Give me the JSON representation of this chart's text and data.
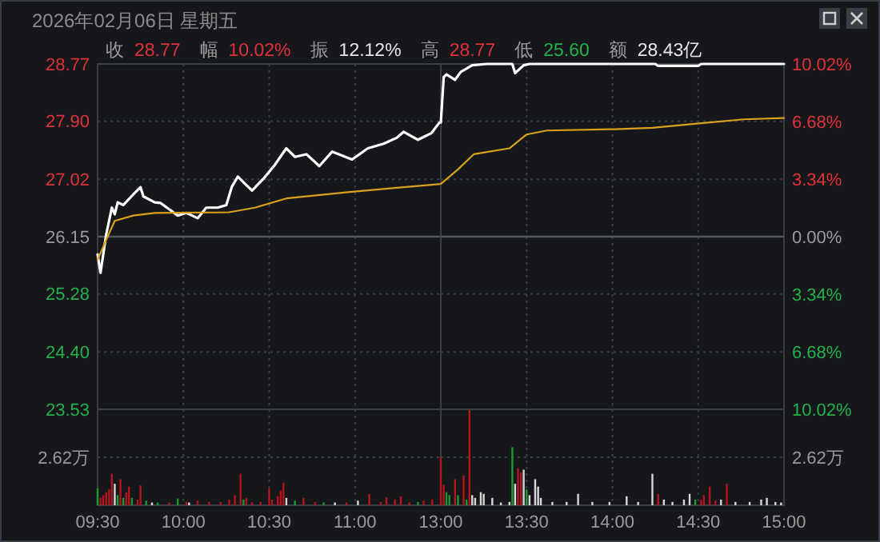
{
  "chart_data": [
    {
      "type": "line",
      "title": "2026年02月06日 星期五",
      "annotations": [
        "收",
        "28.77",
        "幅",
        "10.02%",
        "振",
        "12.12%",
        "高",
        "28.77",
        "低",
        "25.60",
        "额",
        "28.43亿"
      ],
      "tick_labels": "y",
      "grid": true,
      "xlim": [
        9.5,
        11.5
      ],
      "xticks": [
        10,
        10.5,
        11
      ],
      "ylim": [
        23.53,
        28.77
      ],
      "yticks": [
        28.77,
        {
          "value": 27.9,
          "label": "27.90"
        },
        27.02,
        26.15,
        25.28,
        {
          "value": 24.4,
          "label": "24.40"
        },
        23.53
      ],
      "ref_lines": [
        {
          "axis": "y",
          "value": 26.15
        }
      ],
      "series": [
        {
          "color": "#ffffff",
          "x": [
            9.5,
            9.517,
            9.55,
            9.583,
            9.6,
            9.617,
            9.65,
            9.708,
            9.75,
            9.767,
            9.833,
            9.867,
            9.925,
            9.967,
            10.017,
            10.083,
            10.133,
            10.2,
            10.25,
            10.283,
            10.317,
            10.367,
            10.4,
            10.467,
            10.533,
            10.6,
            10.65,
            10.717,
            10.792,
            10.867,
            10.983,
            11.075,
            11.167,
            11.243,
            11.283,
            11.367,
            11.445,
            11.492
          ],
          "values": [
            25.88,
            25.6,
            26.18,
            26.59,
            26.49,
            26.67,
            26.63,
            26.79,
            26.9,
            26.76,
            26.67,
            26.66,
            26.55,
            26.47,
            26.51,
            26.43,
            26.59,
            26.59,
            26.63,
            26.91,
            27.06,
            26.93,
            26.85,
            27.03,
            27.24,
            27.49,
            27.36,
            27.4,
            27.22,
            27.44,
            27.32,
            27.49,
            27.56,
            27.65,
            27.74,
            27.62,
            27.72,
            27.88
          ]
        },
        {
          "color": "#d9a11c",
          "x": [
            9.5,
            9.55,
            9.6,
            9.708,
            9.833,
            10.267,
            10.417,
            10.6,
            10.983,
            11.283,
            11.5
          ],
          "values": [
            25.8,
            26.1,
            26.39,
            26.47,
            26.51,
            26.52,
            26.59,
            26.73,
            26.83,
            26.9,
            26.95
          ]
        }
      ]
    },
    {
      "type": "line",
      "tick_labels": false,
      "grid": true,
      "xlim": [
        13,
        15
      ],
      "xticks": [
        13.5,
        14,
        14.5
      ],
      "ylim": [
        23.53,
        28.77
      ],
      "yticks": [
        28.77,
        27.9,
        27.02,
        26.15,
        25.28,
        24.4,
        23.53
      ],
      "y2lim": [
        -10.02,
        10.02
      ],
      "y2ticks": [
        {
          "value": 10.02,
          "label": "10.02%"
        },
        {
          "value": 6.68,
          "label": "6.68%"
        },
        {
          "value": 3.34,
          "label": "3.34%"
        },
        {
          "value": 0,
          "label": "0.00%"
        },
        {
          "value": -3.34,
          "label": "3.34%"
        },
        {
          "value": -6.68,
          "label": "6.68%"
        },
        {
          "value": -10.02,
          "label": "10.02%"
        }
      ],
      "ref_lines": [
        {
          "axis": "y",
          "value": 26.15
        }
      ],
      "series": [
        {
          "color": "#ffffff",
          "x": [
            13,
            13.017,
            13.033,
            13.083,
            13.117,
            13.183,
            13.267,
            13.417,
            13.433,
            13.483,
            13.517,
            14.25,
            14.267,
            14.5,
            14.517,
            15
          ],
          "values": [
            27.88,
            28.57,
            28.61,
            28.53,
            28.65,
            28.75,
            28.77,
            28.77,
            28.63,
            28.75,
            28.77,
            28.77,
            28.74,
            28.74,
            28.77,
            28.77
          ]
        },
        {
          "color": "#d9a11c",
          "x": [
            13,
            13.1,
            13.192,
            13.4,
            13.5,
            13.617,
            14.017,
            14.233,
            14.517,
            14.767,
            15
          ],
          "values": [
            26.95,
            27.17,
            27.4,
            27.49,
            27.7,
            27.76,
            27.78,
            27.8,
            27.87,
            27.93,
            27.95
          ]
        }
      ]
    },
    {
      "type": "bar",
      "grid": true,
      "xlim": [
        9.5,
        11.5
      ],
      "xticks": [
        {
          "value": 9.5,
          "label": "09:30"
        },
        {
          "value": 10,
          "label": "10:00"
        },
        {
          "value": 10.5,
          "label": "10:30"
        },
        {
          "value": 11,
          "label": "11:00"
        }
      ],
      "ylim": [
        0,
        5.24
      ],
      "yticks": [
        {
          "value": 2.62,
          "label": "2.62万"
        }
      ],
      "x": [
        9.5,
        9.517,
        9.533,
        9.55,
        9.567,
        9.583,
        9.6,
        9.617,
        9.633,
        9.65,
        9.667,
        9.683,
        9.7,
        9.733,
        9.75,
        9.783,
        9.817,
        9.85,
        9.917,
        9.967,
        10.017,
        10.033,
        10.083,
        10.15,
        10.217,
        10.267,
        10.3,
        10.333,
        10.35,
        10.367,
        10.4,
        10.45,
        10.5,
        10.517,
        10.55,
        10.567,
        10.583,
        10.6,
        10.65,
        10.7,
        10.767,
        10.817,
        10.883,
        10.95,
        11.017,
        11.083,
        11.15,
        11.183,
        11.233,
        11.267,
        11.317,
        11.367,
        11.4,
        11.45
      ],
      "values": [
        0.92,
        0.4,
        0.55,
        0.71,
        0.86,
        1.72,
        1.17,
        0.55,
        1.42,
        0.4,
        0.71,
        1.02,
        0.4,
        0.31,
        1.08,
        0.25,
        0.15,
        0.15,
        0.15,
        0.37,
        0.18,
        0.15,
        0.25,
        0.18,
        0.18,
        0.31,
        0.55,
        1.72,
        0.31,
        0.4,
        0.15,
        0.18,
        0.92,
        0.31,
        0.49,
        0.8,
        1.23,
        0.4,
        0.25,
        0.4,
        0.18,
        0.15,
        0.15,
        0.15,
        0.25,
        0.62,
        0.18,
        0.43,
        0.31,
        0.49,
        0.15,
        0.18,
        0.25,
        0.31
      ],
      "colors": [
        "#1a9b32",
        "#b3161c",
        "#b3161c",
        "#b3161c",
        "#b3161c",
        "#b3161c",
        "#d8d8d8",
        "#1a9b32",
        "#b3161c",
        "#1a9b32",
        "#b3161c",
        "#b3161c",
        "#1a9b32",
        "#b3161c",
        "#b3161c",
        "#1a9b32",
        "#d8d8d8",
        "#1a9b32",
        "#b3161c",
        "#1a9b32",
        "#b3161c",
        "#d8d8d8",
        "#b3161c",
        "#b3161c",
        "#b3161c",
        "#b3161c",
        "#b3161c",
        "#b3161c",
        "#1a9b32",
        "#b3161c",
        "#b3161c",
        "#b3161c",
        "#b3161c",
        "#b3161c",
        "#b3161c",
        "#b3161c",
        "#b3161c",
        "#d8d8d8",
        "#1a9b32",
        "#b3161c",
        "#b3161c",
        "#1a9b32",
        "#d8d8d8",
        "#b3161c",
        "#d8d8d8",
        "#b3161c",
        "#b3161c",
        "#b3161c",
        "#b3161c",
        "#b3161c",
        "#b3161c",
        "#1a9b32",
        "#b3161c",
        "#b3161c"
      ]
    },
    {
      "type": "bar",
      "grid": true,
      "xlim": [
        13,
        15
      ],
      "xticks": [
        {
          "value": 13,
          "label": "13:00"
        },
        {
          "value": 13.5,
          "label": "13:30"
        },
        {
          "value": 14,
          "label": "14:00"
        },
        {
          "value": 14.5,
          "label": "14:30"
        },
        {
          "value": 15,
          "label": "15:00"
        }
      ],
      "ylim": [
        0,
        5.24
      ],
      "yticks": [
        {
          "value": 2.62,
          "label": "2.62万"
        }
      ],
      "x": [
        13,
        13.017,
        13.033,
        13.05,
        13.083,
        13.1,
        13.133,
        13.15,
        13.167,
        13.183,
        13.2,
        13.233,
        13.25,
        13.3,
        13.35,
        13.4,
        13.417,
        13.433,
        13.45,
        13.467,
        13.483,
        13.5,
        13.517,
        13.55,
        13.567,
        13.583,
        13.65,
        13.733,
        13.8,
        13.883,
        13.983,
        14.083,
        14.15,
        14.233,
        14.267,
        14.3,
        14.35,
        14.417,
        14.45,
        14.483,
        14.517,
        14.533,
        14.567,
        14.6,
        14.633,
        14.667,
        14.717,
        14.8,
        14.867,
        14.9,
        14.95,
        14.983
      ],
      "values": [
        2.62,
        1.11,
        0.71,
        0.55,
        1.42,
        0.55,
        1.63,
        0.31,
        5.2,
        0.55,
        0.4,
        0.71,
        0.62,
        0.4,
        0.15,
        0.18,
        3.17,
        1.17,
        2.03,
        1.79,
        1.94,
        0.86,
        0.55,
        1.42,
        1.02,
        0.4,
        0.18,
        0.18,
        0.62,
        0.18,
        0.18,
        0.49,
        0.18,
        1.72,
        0.62,
        0.31,
        0.18,
        0.31,
        0.62,
        0.31,
        0.31,
        0.55,
        1.02,
        0.25,
        0.31,
        1.17,
        0.18,
        0.18,
        0.31,
        0.4,
        0.18,
        0.15
      ],
      "colors": [
        "#b3161c",
        "#b3161c",
        "#1a9b32",
        "#1a9b32",
        "#b3161c",
        "#1a9b32",
        "#b3161c",
        "#1a9b32",
        "#b3161c",
        "#d8d8d8",
        "#d8d8d8",
        "#d8d8d8",
        "#d8d8d8",
        "#d8d8d8",
        "#d8d8d8",
        "#d8d8d8",
        "#1a9b32",
        "#d8d8d8",
        "#b3161c",
        "#b3161c",
        "#d8d8d8",
        "#1a9b32",
        "#d8d8d8",
        "#d8d8d8",
        "#d8d8d8",
        "#d8d8d8",
        "#d8d8d8",
        "#d8d8d8",
        "#d8d8d8",
        "#d8d8d8",
        "#d8d8d8",
        "#d8d8d8",
        "#d8d8d8",
        "#d8d8d8",
        "#b3161c",
        "#d8d8d8",
        "#d8d8d8",
        "#d8d8d8",
        "#d8d8d8",
        "#1a9b32",
        "#b3161c",
        "#b3161c",
        "#b3161c",
        "#b3161c",
        "#d8d8d8",
        "#b3161c",
        "#d8d8d8",
        "#d8d8d8",
        "#d8d8d8",
        "#d8d8d8",
        "#d8d8d8",
        "#d8d8d8"
      ]
    }
  ]
}
